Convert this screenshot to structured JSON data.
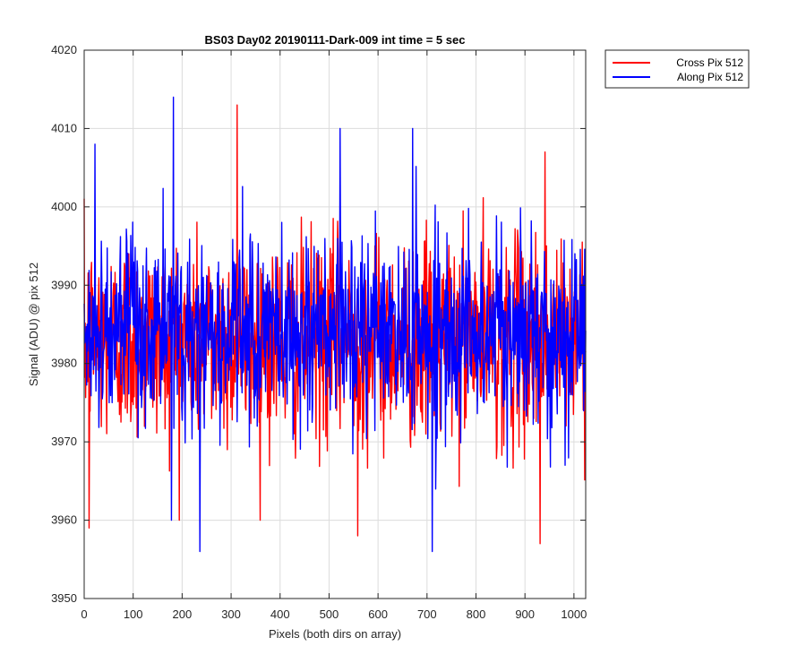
{
  "chart_data": {
    "type": "line",
    "title": "BS03 Day02 20190111-Dark-009 int time = 5 sec",
    "xlabel": "Pixels (both dirs on array)",
    "ylabel": "Signal (ADU) @ pix 512",
    "xlim": [
      0,
      1024
    ],
    "ylim": [
      3950,
      4020
    ],
    "xticks": [
      0,
      100,
      200,
      300,
      400,
      500,
      600,
      700,
      800,
      900,
      1000
    ],
    "yticks": [
      3950,
      3960,
      3970,
      3980,
      3990,
      4000,
      4010,
      4020
    ],
    "grid": true,
    "legend_position": "outside-top-right",
    "series": [
      {
        "name": "Cross Pix 512",
        "color": "#ff0000",
        "points_count": 1024,
        "mean": 3983,
        "std_dev": 6.5,
        "min": 3957,
        "max": 4013,
        "noted_extremes": [
          {
            "x": 312,
            "y": 4013
          },
          {
            "x": 940,
            "y": 4007
          },
          {
            "x": 930,
            "y": 3957
          },
          {
            "x": 558,
            "y": 3958
          },
          {
            "x": 10,
            "y": 3959
          }
        ]
      },
      {
        "name": "Along Pix 512",
        "color": "#0000ff",
        "points_count": 1024,
        "mean": 3984,
        "std_dev": 6.0,
        "min": 3956,
        "max": 4014,
        "noted_extremes": [
          {
            "x": 182,
            "y": 4014
          },
          {
            "x": 22,
            "y": 4008
          },
          {
            "x": 522,
            "y": 4010
          },
          {
            "x": 670,
            "y": 4010
          },
          {
            "x": 236,
            "y": 3956
          },
          {
            "x": 710,
            "y": 3956
          },
          {
            "x": 178,
            "y": 3960
          }
        ]
      }
    ]
  }
}
